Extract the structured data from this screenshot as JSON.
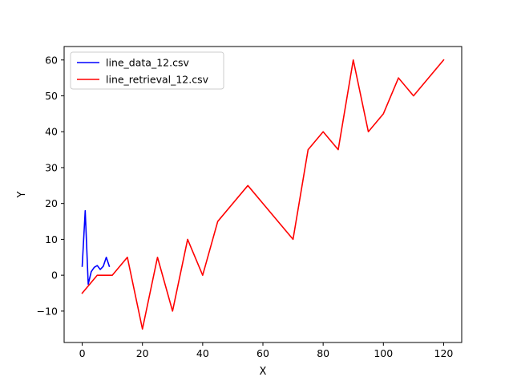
{
  "chart_data": {
    "type": "line",
    "title": "",
    "xlabel": "X",
    "ylabel": "Y",
    "xlim": [
      -6,
      126
    ],
    "ylim": [
      -18.75,
      63.75
    ],
    "xticks": [
      0,
      20,
      40,
      60,
      80,
      100,
      120
    ],
    "yticks": [
      -10,
      0,
      10,
      20,
      30,
      40,
      50,
      60
    ],
    "grid": false,
    "legend_position": "top-left",
    "series": [
      {
        "name": "line_data_12.csv",
        "color": "#0000ff",
        "x": [
          0,
          1,
          2,
          3,
          4,
          5,
          6,
          7,
          8,
          9
        ],
        "y": [
          2.5,
          18,
          -2.5,
          1,
          2.2,
          2.7,
          1.6,
          2.5,
          5,
          2.5
        ]
      },
      {
        "name": "line_retrieval_12.csv",
        "color": "#ff0000",
        "x": [
          0,
          5,
          10,
          15,
          20,
          25,
          30,
          35,
          40,
          45,
          55,
          70,
          75,
          80,
          85,
          90,
          95,
          100,
          105,
          110,
          120
        ],
        "y": [
          -5,
          0,
          0,
          5,
          -15,
          5,
          -10,
          10,
          0,
          15,
          25,
          10,
          35,
          40,
          35,
          60,
          40,
          45,
          55,
          50,
          60
        ]
      }
    ]
  }
}
